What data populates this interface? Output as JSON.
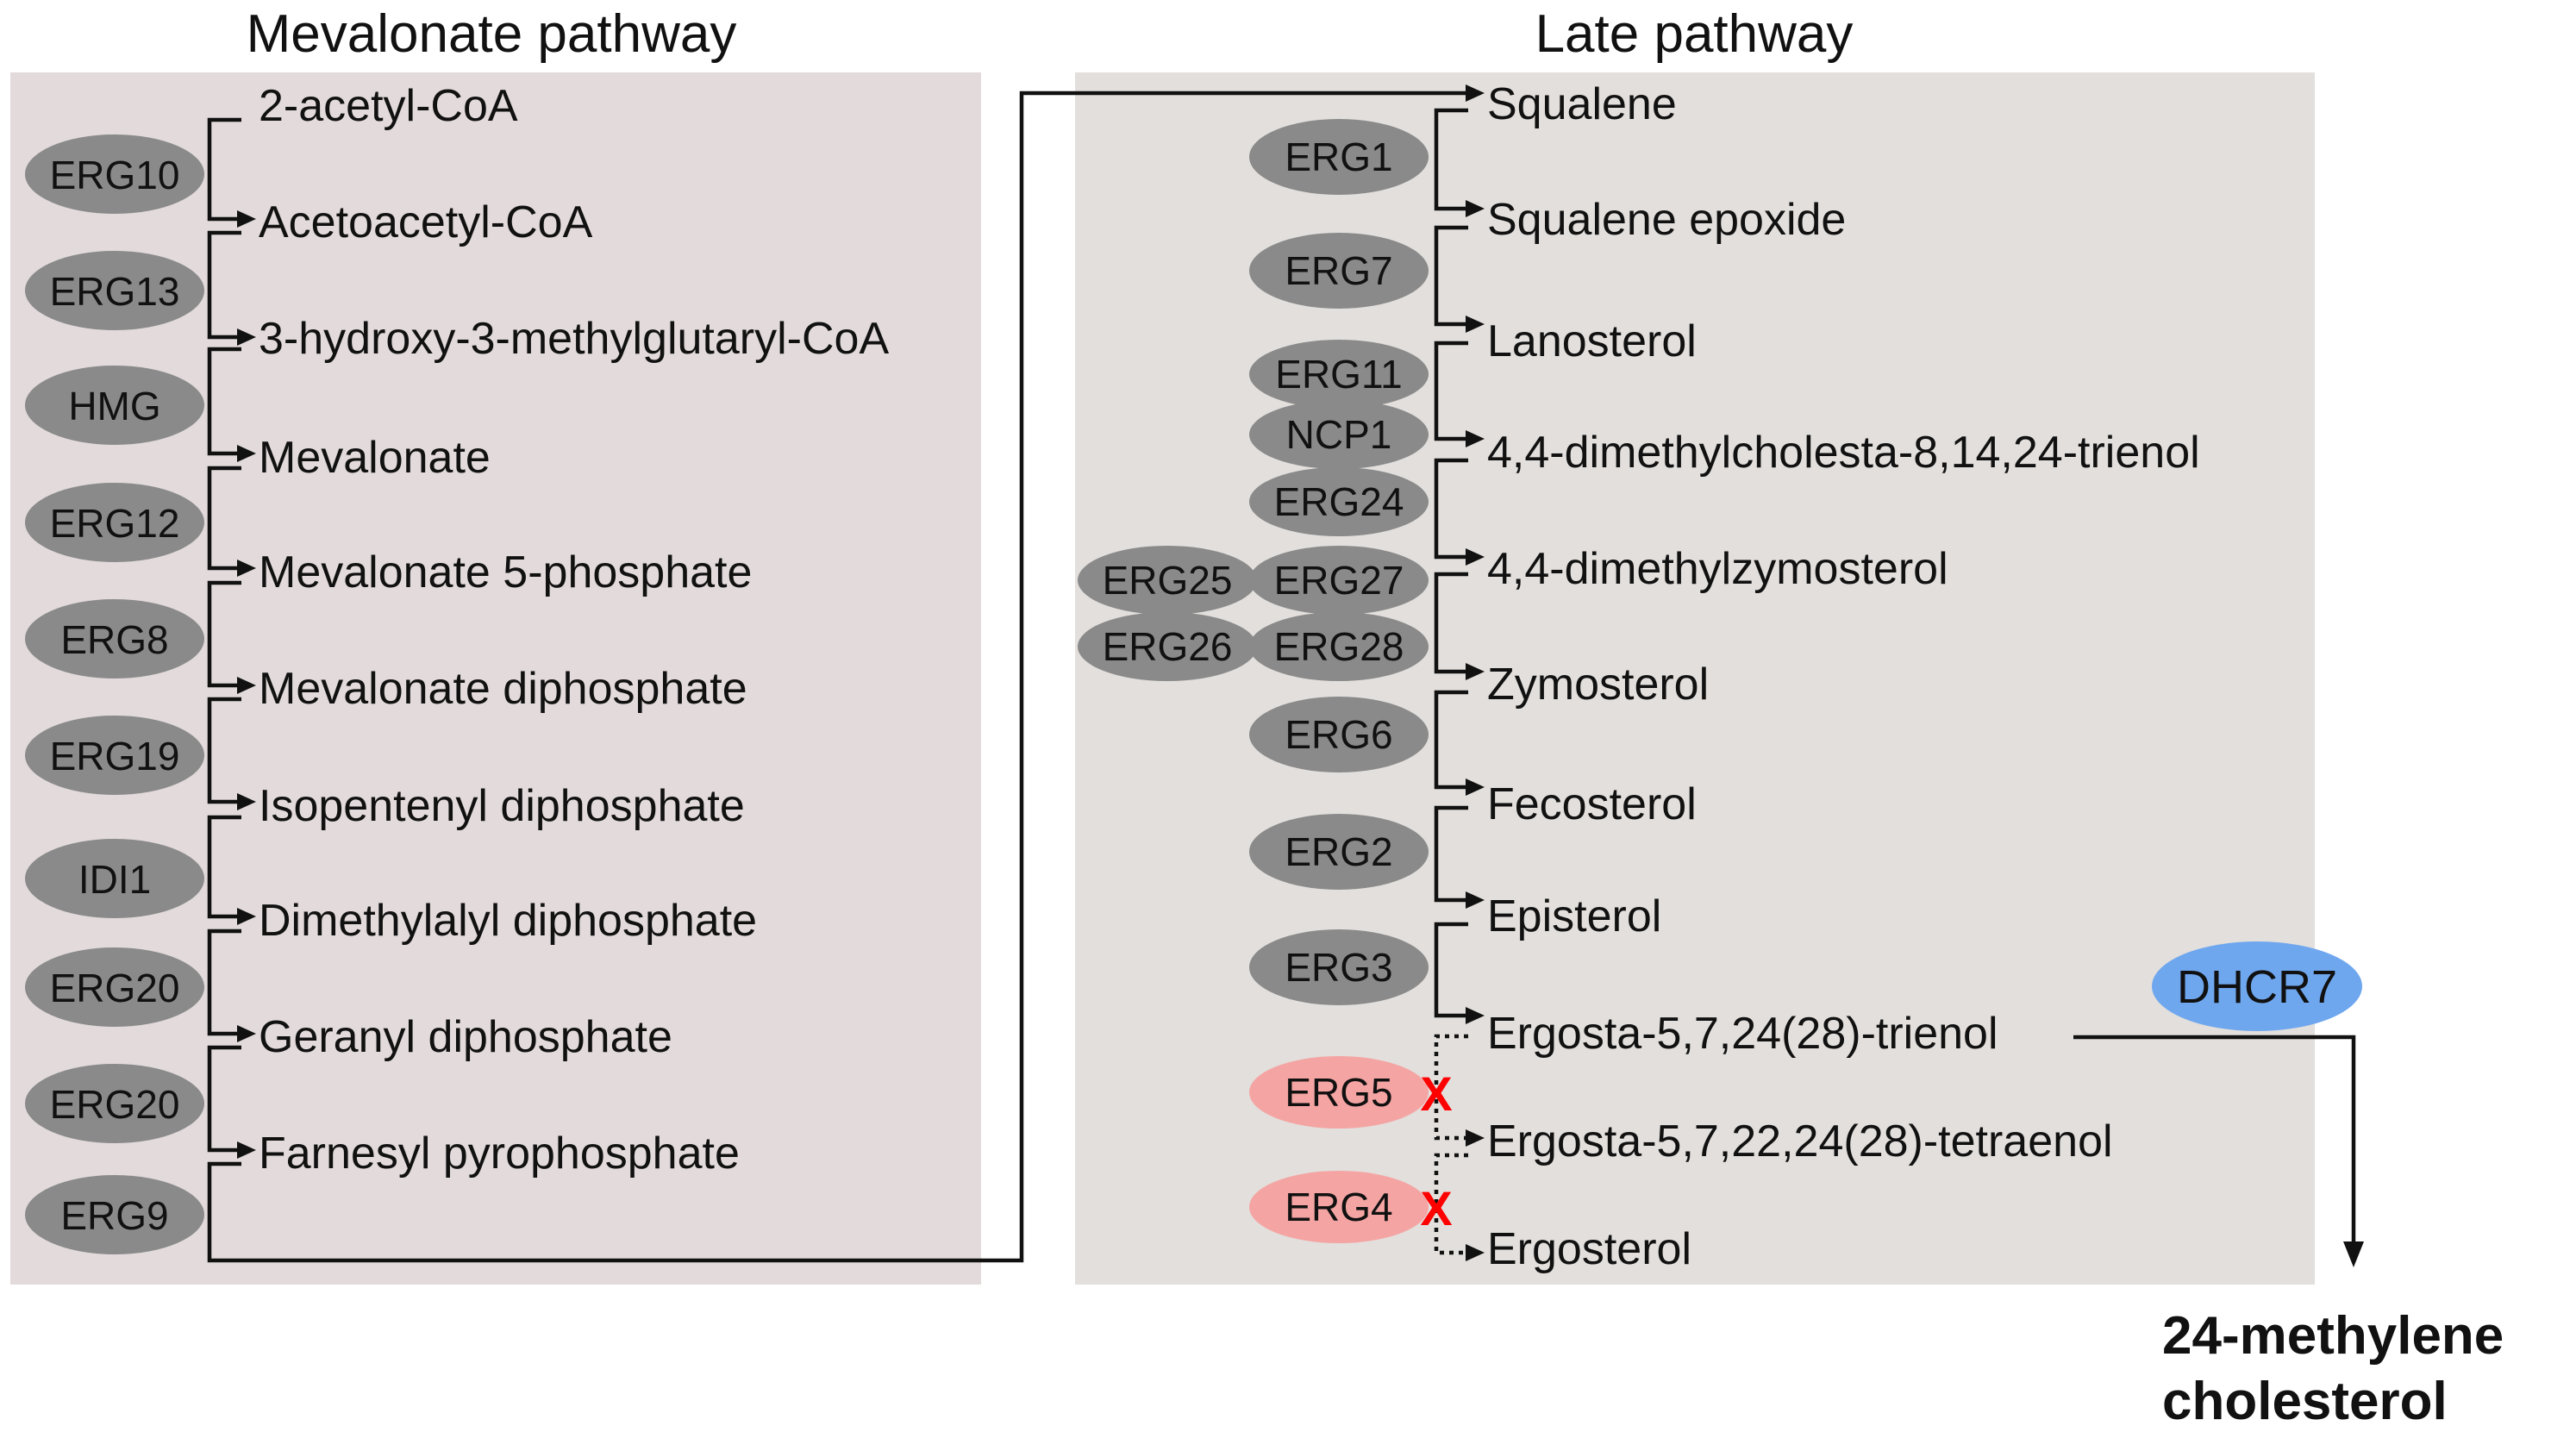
{
  "titles": {
    "mevalonate": "Mevalonate pathway",
    "late": "Late pathway"
  },
  "mevalonate": {
    "metabolites": [
      "2-acetyl-CoA",
      "Acetoacetyl-CoA",
      "3-hydroxy-3-methylglutaryl-CoA",
      "Mevalonate",
      "Mevalonate 5-phosphate",
      "Mevalonate diphosphate",
      "Isopentenyl diphosphate",
      "Dimethylalyl diphosphate",
      "Geranyl diphosphate",
      "Farnesyl pyrophosphate"
    ],
    "enzymes": [
      "ERG10",
      "ERG13",
      "HMG",
      "ERG12",
      "ERG8",
      "ERG19",
      "IDI1",
      "ERG20",
      "ERG20",
      "ERG9"
    ]
  },
  "late": {
    "metabolites": [
      "Squalene",
      "Squalene epoxide",
      "Lanosterol",
      "4,4-dimethylcholesta-8,14,24-trienol",
      "4,4-dimethylzymosterol",
      "Zymosterol",
      "Fecosterol",
      "Episterol",
      "Ergosta-5,7,24(28)-trienol",
      "Ergosta-5,7,22,24(28)-tetraenol",
      "Ergosterol"
    ],
    "enzymes": [
      "ERG1",
      "ERG7",
      "ERG11",
      "NCP1",
      "ERG24",
      "ERG25",
      "ERG27",
      "ERG26",
      "ERG28",
      "ERG6",
      "ERG2",
      "ERG3",
      "ERG5",
      "ERG4"
    ],
    "blocked_mark": "X"
  },
  "branch": {
    "enzyme": "DHCR7",
    "product_line1": "24-methylene",
    "product_line2": "cholesterol"
  },
  "colors": {
    "mevalonate_panel": "#e2dadb",
    "late_panel": "#e2dfdc",
    "enzyme": "#8a8a8a",
    "deleted_enzyme": "#f4a5a3",
    "added_enzyme": "#6fa7ef",
    "blocked_mark": "#ff0000"
  }
}
